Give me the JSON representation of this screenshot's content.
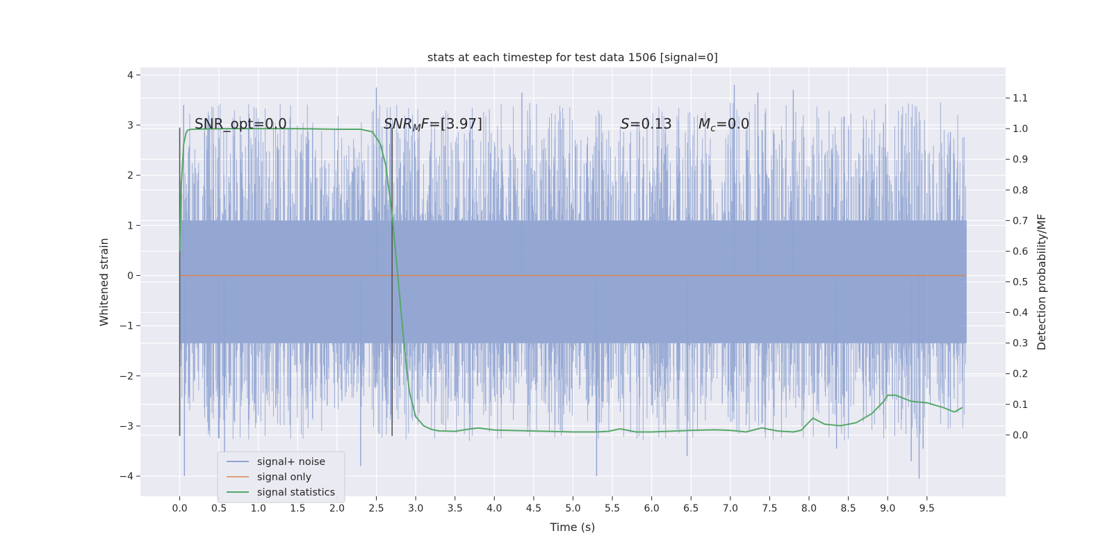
{
  "chart_data": {
    "type": "line",
    "title": "stats at each timestep for test data 1506 [signal=0]",
    "xlabel": "Time (s)",
    "ylabel": "Whitened strain",
    "y2label": "Detection probability/MF",
    "xlim": [
      -0.5,
      10.5
    ],
    "ylim": [
      -4.4,
      4.15
    ],
    "y2lim": [
      -0.2,
      1.2
    ],
    "x_ticks": [
      0.0,
      0.5,
      1.0,
      1.5,
      2.0,
      2.5,
      3.0,
      3.5,
      4.0,
      4.5,
      5.0,
      5.5,
      6.0,
      6.5,
      7.0,
      7.5,
      8.0,
      8.5,
      9.0,
      9.5
    ],
    "x_tick_labels": [
      "0.0",
      "0.5",
      "1.0",
      "1.5",
      "2.0",
      "2.5",
      "3.0",
      "3.5",
      "4.0",
      "4.5",
      "5.0",
      "5.5",
      "6.0",
      "6.5",
      "7.0",
      "7.5",
      "8.0",
      "8.5",
      "9.0",
      "9.5"
    ],
    "y_ticks": [
      -4,
      -3,
      -2,
      -1,
      0,
      1,
      2,
      3,
      4
    ],
    "y_tick_labels": [
      "−4",
      "−3",
      "−2",
      "−1",
      "0",
      "1",
      "2",
      "3",
      "4"
    ],
    "y2_ticks": [
      0.0,
      0.1,
      0.2,
      0.3,
      0.4,
      0.5,
      0.6,
      0.7,
      0.8,
      0.9,
      1.0,
      1.1
    ],
    "y2_tick_labels": [
      "0.0",
      "0.1",
      "0.2",
      "0.3",
      "0.4",
      "0.5",
      "0.6",
      "0.7",
      "0.8",
      "0.9",
      "1.0",
      "1.1"
    ],
    "grid": true,
    "legend_position": "bottom-left",
    "series": [
      {
        "name": "signal+ noise",
        "axis": "left",
        "color": "#8fa3d1",
        "kind": "noise-band",
        "x_range": [
          0.0,
          10.0
        ],
        "dense_band": [
          -1.35,
          1.1
        ],
        "envelope": [
          -2.6,
          2.75
        ],
        "spikes": [
          {
            "x": 0.05,
            "y": 3.4
          },
          {
            "x": 0.06,
            "y": -4.0
          },
          {
            "x": 0.5,
            "y": -3.25
          },
          {
            "x": 0.57,
            "y": -3.6
          },
          {
            "x": 2.3,
            "y": -3.8
          },
          {
            "x": 2.5,
            "y": 3.75
          },
          {
            "x": 4.35,
            "y": 3.65
          },
          {
            "x": 5.3,
            "y": -4.0
          },
          {
            "x": 6.45,
            "y": -3.6
          },
          {
            "x": 7.05,
            "y": 3.8
          },
          {
            "x": 7.35,
            "y": 3.65
          },
          {
            "x": 7.8,
            "y": 3.7
          },
          {
            "x": 8.35,
            "y": -3.45
          },
          {
            "x": 9.3,
            "y": -3.7
          },
          {
            "x": 9.4,
            "y": -4.05
          },
          {
            "x": 9.45,
            "y": -3.45
          }
        ]
      },
      {
        "name": "signal only",
        "axis": "left",
        "color": "#dd8452",
        "x": [
          0.0,
          10.0
        ],
        "y": [
          0.0,
          0.0
        ]
      },
      {
        "name": "signal statistics",
        "axis": "right",
        "color": "#55a868",
        "x": [
          0.0,
          0.02,
          0.05,
          0.08,
          0.1,
          0.15,
          0.3,
          0.6,
          1.0,
          1.5,
          2.0,
          2.3,
          2.45,
          2.55,
          2.62,
          2.7,
          2.78,
          2.85,
          2.92,
          3.0,
          3.1,
          3.2,
          3.3,
          3.5,
          3.7,
          3.8,
          4.0,
          4.5,
          5.0,
          5.3,
          5.45,
          5.6,
          5.8,
          6.0,
          6.5,
          6.8,
          7.0,
          7.2,
          7.4,
          7.6,
          7.8,
          7.9,
          8.05,
          8.2,
          8.4,
          8.6,
          8.8,
          8.95,
          9.0,
          9.1,
          9.3,
          9.5,
          9.7,
          9.85,
          9.95
        ],
        "y": [
          0.6,
          0.82,
          0.95,
          0.985,
          0.995,
          0.998,
          0.999,
          1.0,
          1.0,
          1.0,
          0.998,
          0.998,
          0.99,
          0.95,
          0.88,
          0.72,
          0.5,
          0.3,
          0.14,
          0.06,
          0.03,
          0.018,
          0.013,
          0.012,
          0.02,
          0.023,
          0.016,
          0.013,
          0.01,
          0.01,
          0.012,
          0.02,
          0.01,
          0.01,
          0.015,
          0.017,
          0.015,
          0.01,
          0.023,
          0.013,
          0.01,
          0.015,
          0.055,
          0.035,
          0.03,
          0.04,
          0.07,
          0.11,
          0.13,
          0.13,
          0.11,
          0.105,
          0.09,
          0.075,
          0.09
        ]
      }
    ],
    "vlines": [
      {
        "x": 0.0,
        "y_from": -3.2,
        "y_to": 2.95,
        "color": "#555555"
      },
      {
        "x": 2.7,
        "y_from": -3.2,
        "y_to": 2.95,
        "color": "#555555"
      }
    ],
    "annotations": {
      "snr_opt": "SNR_opt=0.0",
      "snr_mf_var": "SNR",
      "snr_mf_sub": "M",
      "snr_mf_var2": "F",
      "snr_mf_val": "=[3.97]",
      "s_var": "S",
      "s_val": "=0.13",
      "mc_var": "M",
      "mc_sub": "c",
      "mc_val": "=0.0"
    }
  }
}
